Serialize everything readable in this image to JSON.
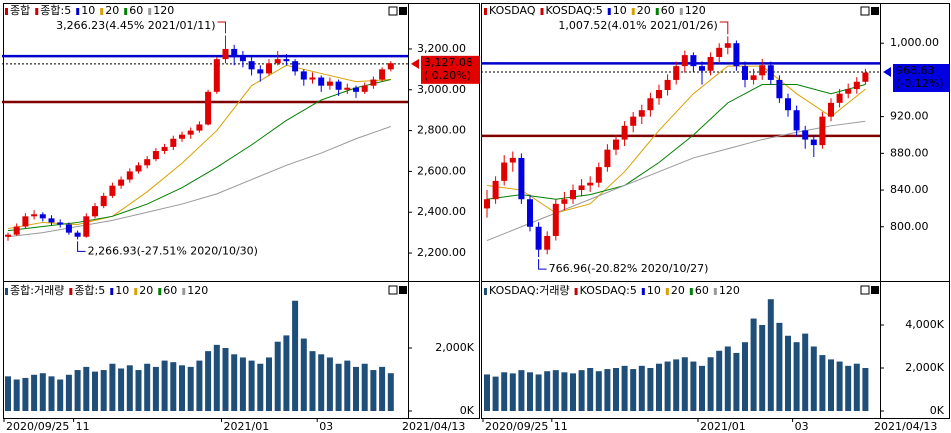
{
  "chart_data": [
    {
      "type": "candlestick",
      "legend": [
        {
          "text": "종합",
          "color": "#cc0000"
        },
        {
          "text": "종합:5",
          "color": "#cc0000"
        },
        {
          "text": "10",
          "color": "#0000cc"
        },
        {
          "text": "20",
          "color": "#d9a000"
        },
        {
          "text": "60",
          "color": "#008000"
        },
        {
          "text": "120",
          "color": "#999999"
        }
      ],
      "volume_legend": [
        {
          "text": "종합:거래량",
          "color": "#1f4e79"
        },
        {
          "text": "종합:5",
          "color": "#cc0000"
        },
        {
          "text": "10",
          "color": "#0000cc"
        },
        {
          "text": "20",
          "color": "#d9a000"
        },
        {
          "text": "60",
          "color": "#008000"
        },
        {
          "text": "120",
          "color": "#999999"
        }
      ],
      "up_color": "#e00000",
      "down_color": "#0000e0",
      "candles": [
        [
          2280,
          2300,
          2260,
          2290
        ],
        [
          2290,
          2345,
          2285,
          2330
        ],
        [
          2330,
          2395,
          2320,
          2380
        ],
        [
          2380,
          2410,
          2365,
          2390
        ],
        [
          2390,
          2400,
          2355,
          2370
        ],
        [
          2370,
          2385,
          2335,
          2350
        ],
        [
          2350,
          2365,
          2325,
          2340
        ],
        [
          2340,
          2350,
          2290,
          2300
        ],
        [
          2300,
          2310,
          2267,
          2280
        ],
        [
          2280,
          2395,
          2275,
          2380
        ],
        [
          2380,
          2445,
          2370,
          2430
        ],
        [
          2430,
          2495,
          2420,
          2480
        ],
        [
          2480,
          2545,
          2470,
          2530
        ],
        [
          2530,
          2575,
          2515,
          2560
        ],
        [
          2560,
          2615,
          2545,
          2600
        ],
        [
          2600,
          2645,
          2590,
          2630
        ],
        [
          2630,
          2675,
          2615,
          2660
        ],
        [
          2660,
          2715,
          2650,
          2700
        ],
        [
          2700,
          2735,
          2685,
          2720
        ],
        [
          2720,
          2775,
          2705,
          2760
        ],
        [
          2760,
          2795,
          2745,
          2780
        ],
        [
          2780,
          2815,
          2760,
          2800
        ],
        [
          2800,
          2845,
          2790,
          2830
        ],
        [
          2830,
          3000,
          2825,
          2990
        ],
        [
          2990,
          3160,
          2980,
          3150
        ],
        [
          3150,
          3266,
          3130,
          3200
        ],
        [
          3200,
          3220,
          3120,
          3160
        ],
        [
          3160,
          3190,
          3110,
          3140
        ],
        [
          3140,
          3160,
          3070,
          3100
        ],
        [
          3100,
          3120,
          3040,
          3080
        ],
        [
          3080,
          3150,
          3070,
          3130
        ],
        [
          3130,
          3190,
          3120,
          3150
        ],
        [
          3150,
          3175,
          3120,
          3140
        ],
        [
          3140,
          3150,
          3070,
          3090
        ],
        [
          3090,
          3100,
          3020,
          3050
        ],
        [
          3050,
          3085,
          3030,
          3060
        ],
        [
          3060,
          3070,
          2990,
          3020
        ],
        [
          3020,
          3060,
          3000,
          3040
        ],
        [
          3040,
          3050,
          2970,
          3000
        ],
        [
          3000,
          3030,
          2980,
          3010
        ],
        [
          3010,
          3020,
          2960,
          2990
        ],
        [
          2990,
          3035,
          2980,
          3020
        ],
        [
          3020,
          3065,
          3005,
          3050
        ],
        [
          3050,
          3110,
          3040,
          3100
        ],
        [
          3100,
          3140,
          3090,
          3130
        ]
      ],
      "ma": [
        {
          "color": "#d9a000",
          "x": [
            0,
            4,
            8,
            12,
            16,
            20,
            24,
            28,
            32,
            36,
            40,
            44
          ],
          "values": [
            2320,
            2350,
            2340,
            2380,
            2500,
            2640,
            2800,
            3020,
            3120,
            3080,
            3040,
            3050
          ]
        },
        {
          "color": "#008000",
          "x": [
            0,
            4,
            8,
            12,
            16,
            20,
            24,
            28,
            32,
            36,
            40,
            44
          ],
          "values": [
            2310,
            2330,
            2350,
            2380,
            2440,
            2520,
            2620,
            2730,
            2850,
            2950,
            3010,
            3050
          ]
        },
        {
          "color": "#999999",
          "x": [
            0,
            4,
            8,
            12,
            16,
            20,
            24,
            28,
            32,
            36,
            40,
            44
          ],
          "values": [
            2280,
            2300,
            2330,
            2360,
            2400,
            2440,
            2490,
            2560,
            2630,
            2690,
            2760,
            2820
          ]
        }
      ],
      "ylim": [
        2068,
        3381
      ],
      "yticks": [
        {
          "value": 2200,
          "label": "2,200.00"
        },
        {
          "value": 2400,
          "label": "2,400.00"
        },
        {
          "value": 2600,
          "label": "2,600.00"
        },
        {
          "value": 2800,
          "label": "2,800.00"
        },
        {
          "value": 3000,
          "label": "3,000.00"
        },
        {
          "value": 3200,
          "label": "3,200.00"
        }
      ],
      "hlines": [
        {
          "value": 3165,
          "color": "#0000cc"
        },
        {
          "value": 2940,
          "color": "#800000"
        }
      ],
      "last_price": 3127.08,
      "last_price_label": "3,127.08",
      "last_change_label": "( 0.20%)",
      "last_color": "#e00000",
      "annotations": [
        {
          "text": "3,266.23(4.45% 2021/01/11)",
          "x": 25,
          "value": 3266.23,
          "pos": "above",
          "color": "#cc0000"
        },
        {
          "text": "2,266.93(-27.51% 2020/10/30)",
          "x": 8,
          "value": 2267,
          "pos": "below",
          "color": "#0000cc"
        }
      ],
      "volume": {
        "color": "#1f4e79",
        "ylim": [
          0,
          4000
        ],
        "yticks": [
          {
            "value": 0,
            "label": "0K"
          },
          {
            "value": 2000,
            "label": "2,000K"
          }
        ],
        "values": [
          1100,
          1000,
          1050,
          1150,
          1200,
          1100,
          1000,
          1150,
          1300,
          1400,
          1250,
          1300,
          1500,
          1350,
          1450,
          1300,
          1500,
          1400,
          1600,
          1550,
          1450,
          1400,
          1600,
          1900,
          2100,
          2000,
          1800,
          1700,
          1600,
          1500,
          1700,
          2200,
          2400,
          3500,
          2300,
          1900,
          1800,
          1700,
          1500,
          1600,
          1400,
          1500,
          1300,
          1400,
          1200
        ]
      },
      "xticks": [
        {
          "value": 0,
          "label": "2020/09/25"
        },
        {
          "value": 8,
          "label": "11"
        },
        {
          "value": 25,
          "label": "2021/01"
        },
        {
          "value": 36,
          "label": "03"
        }
      ],
      "x_end_label": "2021/04/13"
    },
    {
      "type": "candlestick",
      "legend": [
        {
          "text": "KOSDAQ",
          "color": "#cc0000"
        },
        {
          "text": "KOSDAQ:5",
          "color": "#cc0000"
        },
        {
          "text": "10",
          "color": "#0000cc"
        },
        {
          "text": "20",
          "color": "#d9a000"
        },
        {
          "text": "60",
          "color": "#008000"
        },
        {
          "text": "120",
          "color": "#999999"
        }
      ],
      "volume_legend": [
        {
          "text": "KOSDAQ:거래량",
          "color": "#1f4e79"
        },
        {
          "text": "KOSDAQ:5",
          "color": "#cc0000"
        },
        {
          "text": "10",
          "color": "#0000cc"
        },
        {
          "text": "20",
          "color": "#d9a000"
        },
        {
          "text": "60",
          "color": "#008000"
        },
        {
          "text": "120",
          "color": "#999999"
        }
      ],
      "up_color": "#e00000",
      "down_color": "#0000e0",
      "candles": [
        [
          820,
          840,
          810,
          830
        ],
        [
          830,
          855,
          825,
          850
        ],
        [
          850,
          878,
          845,
          870
        ],
        [
          870,
          882,
          860,
          875
        ],
        [
          875,
          880,
          825,
          830
        ],
        [
          830,
          835,
          795,
          800
        ],
        [
          800,
          805,
          766.96,
          775
        ],
        [
          775,
          795,
          770,
          790
        ],
        [
          790,
          830,
          785,
          825
        ],
        [
          825,
          838,
          818,
          830
        ],
        [
          830,
          846,
          825,
          840
        ],
        [
          840,
          852,
          833,
          845
        ],
        [
          845,
          855,
          838,
          848
        ],
        [
          848,
          870,
          843,
          865
        ],
        [
          865,
          890,
          860,
          884
        ],
        [
          884,
          900,
          878,
          895
        ],
        [
          895,
          915,
          888,
          910
        ],
        [
          910,
          925,
          903,
          920
        ],
        [
          920,
          933,
          912,
          927
        ],
        [
          927,
          946,
          920,
          940
        ],
        [
          940,
          955,
          933,
          949
        ],
        [
          949,
          966,
          943,
          960
        ],
        [
          960,
          980,
          955,
          975
        ],
        [
          975,
          992,
          968,
          987
        ],
        [
          987,
          990,
          968,
          975
        ],
        [
          975,
          980,
          955,
          970
        ],
        [
          970,
          990,
          965,
          985
        ],
        [
          985,
          1000,
          978,
          995
        ],
        [
          995,
          1007.52,
          988,
          1000
        ],
        [
          1000,
          1003,
          970,
          975
        ],
        [
          975,
          980,
          952,
          960
        ],
        [
          960,
          972,
          955,
          965
        ],
        [
          965,
          983,
          960,
          976
        ],
        [
          976,
          980,
          955,
          960
        ],
        [
          960,
          965,
          935,
          940
        ],
        [
          940,
          945,
          920,
          927
        ],
        [
          927,
          932,
          898,
          905
        ],
        [
          905,
          910,
          885,
          895
        ],
        [
          895,
          900,
          876,
          889
        ],
        [
          889,
          925,
          885,
          920
        ],
        [
          920,
          940,
          915,
          935
        ],
        [
          935,
          950,
          930,
          945
        ],
        [
          945,
          956,
          940,
          950
        ],
        [
          950,
          963,
          945,
          958
        ],
        [
          958,
          972,
          955,
          968
        ]
      ],
      "ma": [
        {
          "color": "#d9a000",
          "x": [
            0,
            4,
            8,
            12,
            16,
            20,
            24,
            28,
            32,
            36,
            40,
            44
          ],
          "values": [
            845,
            840,
            815,
            825,
            860,
            905,
            945,
            975,
            975,
            945,
            920,
            950
          ]
        },
        {
          "color": "#008000",
          "x": [
            0,
            4,
            8,
            12,
            16,
            20,
            24,
            28,
            32,
            36,
            40,
            44
          ],
          "values": [
            830,
            835,
            830,
            835,
            845,
            870,
            900,
            935,
            955,
            955,
            945,
            955
          ]
        },
        {
          "color": "#999999",
          "x": [
            0,
            4,
            8,
            12,
            16,
            20,
            24,
            28,
            32,
            36,
            40,
            44
          ],
          "values": [
            785,
            800,
            815,
            830,
            845,
            860,
            875,
            885,
            895,
            903,
            910,
            915
          ]
        }
      ],
      "ylim": [
        742,
        1034
      ],
      "yticks": [
        {
          "value": 800,
          "label": "800.00"
        },
        {
          "value": 840,
          "label": "840.00"
        },
        {
          "value": 880,
          "label": "880.00"
        },
        {
          "value": 920,
          "label": "920.00"
        },
        {
          "value": 1000,
          "label": "1,000.00"
        }
      ],
      "hlines": [
        {
          "value": 978,
          "color": "#0000cc"
        },
        {
          "value": 899,
          "color": "#800000"
        }
      ],
      "last_price": 968.63,
      "last_price_label": "968.63",
      "last_change_label": "(-0.12%)",
      "last_color": "#0000e0",
      "annotations": [
        {
          "text": "1,007.52(4.01% 2021/01/26)",
          "x": 28,
          "value": 1007.52,
          "pos": "above",
          "color": "#cc0000"
        },
        {
          "text": "766.96(-20.82% 2020/10/27)",
          "x": 6,
          "value": 766.96,
          "pos": "below",
          "color": "#0000cc"
        }
      ],
      "volume": {
        "color": "#1f4e79",
        "ylim": [
          0,
          5860
        ],
        "yticks": [
          {
            "value": 0,
            "label": "0K"
          },
          {
            "value": 2000,
            "label": "2,000K"
          },
          {
            "value": 4000,
            "label": "4,000K"
          }
        ],
        "values": [
          1700,
          1600,
          1800,
          1750,
          1900,
          1800,
          1700,
          1850,
          1900,
          1800,
          1750,
          1900,
          2000,
          1850,
          1950,
          2000,
          2100,
          1950,
          2100,
          2000,
          2200,
          2300,
          2400,
          2500,
          2300,
          2100,
          2500,
          2800,
          3000,
          2700,
          3200,
          4300,
          4000,
          5200,
          4100,
          3500,
          3200,
          3600,
          3000,
          2600,
          2400,
          2300,
          2100,
          2200,
          2000
        ]
      },
      "xticks": [
        {
          "value": 0,
          "label": "2020/09/25"
        },
        {
          "value": 8,
          "label": "11"
        },
        {
          "value": 25,
          "label": "2021/01"
        },
        {
          "value": 36,
          "label": "03"
        }
      ],
      "x_end_label": "2021/04/13"
    }
  ]
}
